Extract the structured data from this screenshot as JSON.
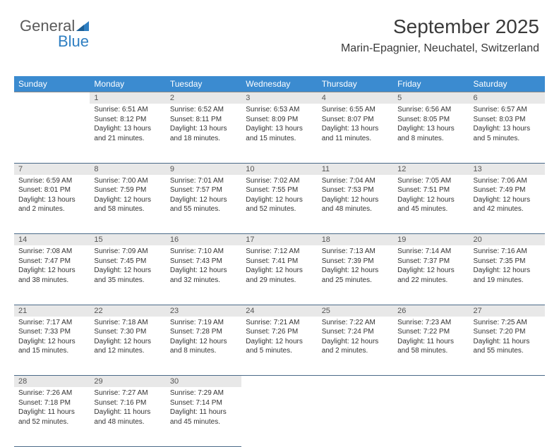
{
  "logo": {
    "part1": "General",
    "part2": "Blue"
  },
  "header": {
    "title": "September 2025",
    "location": "Marin-Epagnier, Neuchatel, Switzerland"
  },
  "colors": {
    "header_bg": "#3b8bd0",
    "header_fg": "#ffffff",
    "daynum_bg": "#e8e8e8",
    "row_border": "#4a6a88",
    "logo_gray": "#5a5a5a",
    "logo_blue": "#2f7fc2"
  },
  "weekdays": [
    "Sunday",
    "Monday",
    "Tuesday",
    "Wednesday",
    "Thursday",
    "Friday",
    "Saturday"
  ],
  "weeks": [
    {
      "nums": [
        "",
        "1",
        "2",
        "3",
        "4",
        "5",
        "6"
      ],
      "cells": [
        null,
        {
          "sunrise": "Sunrise: 6:51 AM",
          "sunset": "Sunset: 8:12 PM",
          "daylight": "Daylight: 13 hours and 21 minutes."
        },
        {
          "sunrise": "Sunrise: 6:52 AM",
          "sunset": "Sunset: 8:11 PM",
          "daylight": "Daylight: 13 hours and 18 minutes."
        },
        {
          "sunrise": "Sunrise: 6:53 AM",
          "sunset": "Sunset: 8:09 PM",
          "daylight": "Daylight: 13 hours and 15 minutes."
        },
        {
          "sunrise": "Sunrise: 6:55 AM",
          "sunset": "Sunset: 8:07 PM",
          "daylight": "Daylight: 13 hours and 11 minutes."
        },
        {
          "sunrise": "Sunrise: 6:56 AM",
          "sunset": "Sunset: 8:05 PM",
          "daylight": "Daylight: 13 hours and 8 minutes."
        },
        {
          "sunrise": "Sunrise: 6:57 AM",
          "sunset": "Sunset: 8:03 PM",
          "daylight": "Daylight: 13 hours and 5 minutes."
        }
      ]
    },
    {
      "nums": [
        "7",
        "8",
        "9",
        "10",
        "11",
        "12",
        "13"
      ],
      "cells": [
        {
          "sunrise": "Sunrise: 6:59 AM",
          "sunset": "Sunset: 8:01 PM",
          "daylight": "Daylight: 13 hours and 2 minutes."
        },
        {
          "sunrise": "Sunrise: 7:00 AM",
          "sunset": "Sunset: 7:59 PM",
          "daylight": "Daylight: 12 hours and 58 minutes."
        },
        {
          "sunrise": "Sunrise: 7:01 AM",
          "sunset": "Sunset: 7:57 PM",
          "daylight": "Daylight: 12 hours and 55 minutes."
        },
        {
          "sunrise": "Sunrise: 7:02 AM",
          "sunset": "Sunset: 7:55 PM",
          "daylight": "Daylight: 12 hours and 52 minutes."
        },
        {
          "sunrise": "Sunrise: 7:04 AM",
          "sunset": "Sunset: 7:53 PM",
          "daylight": "Daylight: 12 hours and 48 minutes."
        },
        {
          "sunrise": "Sunrise: 7:05 AM",
          "sunset": "Sunset: 7:51 PM",
          "daylight": "Daylight: 12 hours and 45 minutes."
        },
        {
          "sunrise": "Sunrise: 7:06 AM",
          "sunset": "Sunset: 7:49 PM",
          "daylight": "Daylight: 12 hours and 42 minutes."
        }
      ]
    },
    {
      "nums": [
        "14",
        "15",
        "16",
        "17",
        "18",
        "19",
        "20"
      ],
      "cells": [
        {
          "sunrise": "Sunrise: 7:08 AM",
          "sunset": "Sunset: 7:47 PM",
          "daylight": "Daylight: 12 hours and 38 minutes."
        },
        {
          "sunrise": "Sunrise: 7:09 AM",
          "sunset": "Sunset: 7:45 PM",
          "daylight": "Daylight: 12 hours and 35 minutes."
        },
        {
          "sunrise": "Sunrise: 7:10 AM",
          "sunset": "Sunset: 7:43 PM",
          "daylight": "Daylight: 12 hours and 32 minutes."
        },
        {
          "sunrise": "Sunrise: 7:12 AM",
          "sunset": "Sunset: 7:41 PM",
          "daylight": "Daylight: 12 hours and 29 minutes."
        },
        {
          "sunrise": "Sunrise: 7:13 AM",
          "sunset": "Sunset: 7:39 PM",
          "daylight": "Daylight: 12 hours and 25 minutes."
        },
        {
          "sunrise": "Sunrise: 7:14 AM",
          "sunset": "Sunset: 7:37 PM",
          "daylight": "Daylight: 12 hours and 22 minutes."
        },
        {
          "sunrise": "Sunrise: 7:16 AM",
          "sunset": "Sunset: 7:35 PM",
          "daylight": "Daylight: 12 hours and 19 minutes."
        }
      ]
    },
    {
      "nums": [
        "21",
        "22",
        "23",
        "24",
        "25",
        "26",
        "27"
      ],
      "cells": [
        {
          "sunrise": "Sunrise: 7:17 AM",
          "sunset": "Sunset: 7:33 PM",
          "daylight": "Daylight: 12 hours and 15 minutes."
        },
        {
          "sunrise": "Sunrise: 7:18 AM",
          "sunset": "Sunset: 7:30 PM",
          "daylight": "Daylight: 12 hours and 12 minutes."
        },
        {
          "sunrise": "Sunrise: 7:19 AM",
          "sunset": "Sunset: 7:28 PM",
          "daylight": "Daylight: 12 hours and 8 minutes."
        },
        {
          "sunrise": "Sunrise: 7:21 AM",
          "sunset": "Sunset: 7:26 PM",
          "daylight": "Daylight: 12 hours and 5 minutes."
        },
        {
          "sunrise": "Sunrise: 7:22 AM",
          "sunset": "Sunset: 7:24 PM",
          "daylight": "Daylight: 12 hours and 2 minutes."
        },
        {
          "sunrise": "Sunrise: 7:23 AM",
          "sunset": "Sunset: 7:22 PM",
          "daylight": "Daylight: 11 hours and 58 minutes."
        },
        {
          "sunrise": "Sunrise: 7:25 AM",
          "sunset": "Sunset: 7:20 PM",
          "daylight": "Daylight: 11 hours and 55 minutes."
        }
      ]
    },
    {
      "nums": [
        "28",
        "29",
        "30",
        "",
        "",
        "",
        ""
      ],
      "cells": [
        {
          "sunrise": "Sunrise: 7:26 AM",
          "sunset": "Sunset: 7:18 PM",
          "daylight": "Daylight: 11 hours and 52 minutes."
        },
        {
          "sunrise": "Sunrise: 7:27 AM",
          "sunset": "Sunset: 7:16 PM",
          "daylight": "Daylight: 11 hours and 48 minutes."
        },
        {
          "sunrise": "Sunrise: 7:29 AM",
          "sunset": "Sunset: 7:14 PM",
          "daylight": "Daylight: 11 hours and 45 minutes."
        },
        null,
        null,
        null,
        null
      ]
    }
  ]
}
